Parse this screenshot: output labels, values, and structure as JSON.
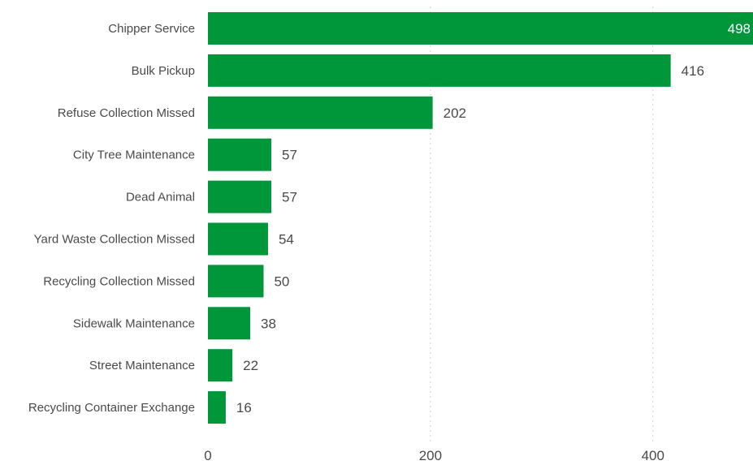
{
  "chart_data": {
    "type": "bar",
    "orientation": "horizontal",
    "categories": [
      "Chipper Service",
      "Bulk Pickup",
      "Refuse Collection Missed",
      "City Tree Maintenance",
      "Dead Animal",
      "Yard Waste Collection Missed",
      "Recycling Collection Missed",
      "Sidewalk Maintenance",
      "Street Maintenance",
      "Recycling Container Exchange"
    ],
    "values": [
      498,
      416,
      202,
      57,
      57,
      54,
      50,
      38,
      22,
      16
    ],
    "data_labels": [
      "498",
      "416",
      "202",
      "57",
      "57",
      "54",
      "50",
      "38",
      "22",
      "16"
    ],
    "x_ticks": [
      0,
      200,
      400
    ],
    "x_tick_labels": [
      "0",
      "200",
      "400"
    ],
    "xlim": [
      0,
      490
    ],
    "grid": "vertical dotted",
    "bar_color": "#00963a",
    "title": "",
    "xlabel": "",
    "ylabel": ""
  }
}
